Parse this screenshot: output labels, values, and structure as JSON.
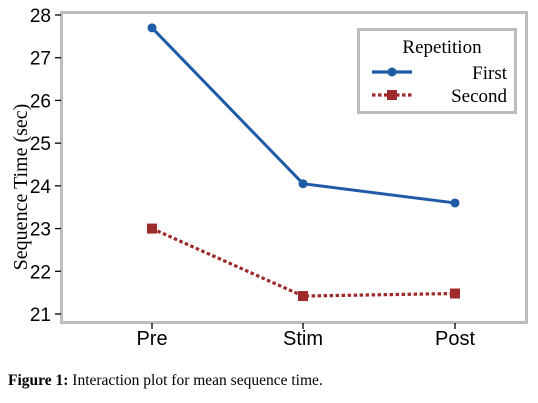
{
  "chart_data": {
    "type": "line",
    "title": "",
    "xlabel": "",
    "ylabel": "Sequence Time (sec)",
    "categories": [
      "Pre",
      "Stim",
      "Post"
    ],
    "ylim": [
      21,
      28
    ],
    "yticks": [
      "21",
      "22",
      "23",
      "24",
      "25",
      "26",
      "27",
      "28"
    ],
    "grid": false,
    "legend": {
      "title": "Repetition",
      "placement": "top-right"
    },
    "series": [
      {
        "name": "First",
        "values": [
          27.7,
          24.05,
          23.6
        ],
        "color": "#1f5aa6",
        "marker": "circle",
        "line": "solid"
      },
      {
        "name": "Second",
        "values": [
          23.0,
          21.42,
          21.48
        ],
        "color": "#9e2a2b",
        "marker": "square",
        "line": "dotted"
      }
    ]
  },
  "caption": {
    "lead": "Figure 1:",
    "text": " Interaction plot for mean sequence time."
  }
}
